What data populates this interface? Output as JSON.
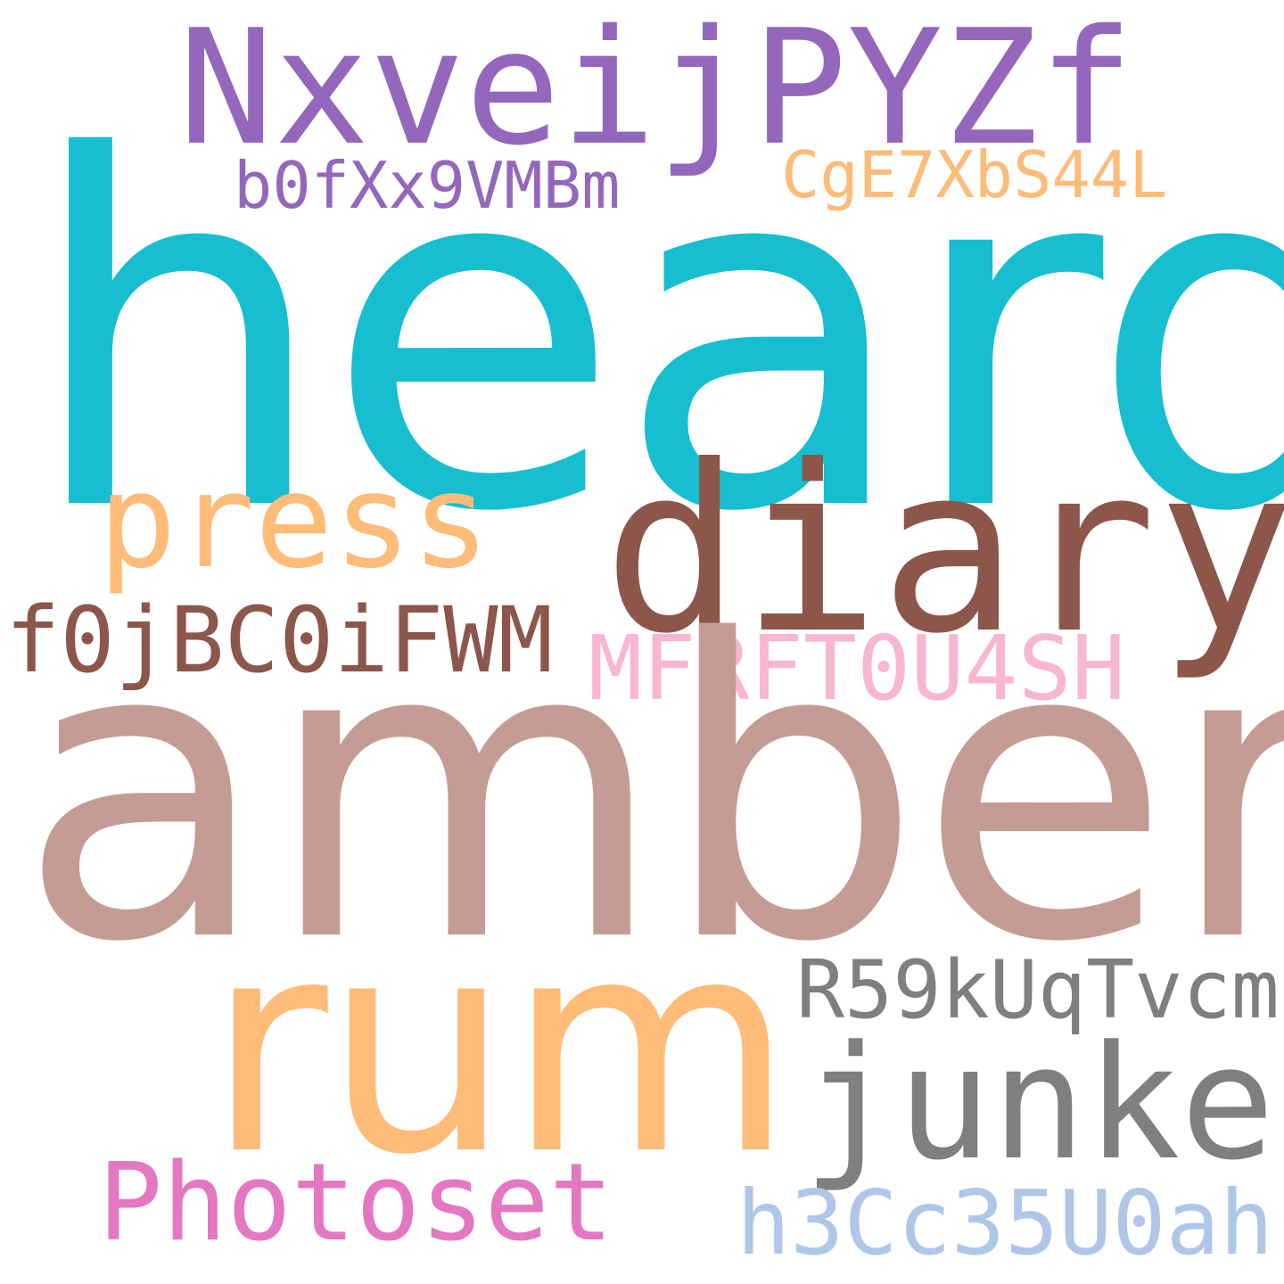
{
  "words": [
    {
      "text": "heard",
      "color": "#17becf"
    },
    {
      "text": "NxveijPYZf",
      "color": "#9467bd"
    },
    {
      "text": "b0fXx9VMBm",
      "color": "#9467bd"
    },
    {
      "text": "CgE7XbS44L",
      "color": "#ffbb78"
    },
    {
      "text": "press",
      "color": "#ffbb78"
    },
    {
      "text": "diary",
      "color": "#8c564b"
    },
    {
      "text": "f0jBC0iFWM",
      "color": "#8c564b"
    },
    {
      "text": "MFRFT0U4SH",
      "color": "#f7b6d2"
    },
    {
      "text": "amber",
      "color": "#c49c94"
    },
    {
      "text": "rum",
      "color": "#ffbb78"
    },
    {
      "text": "R59kUqTvcm",
      "color": "#7f7f7f"
    },
    {
      "text": "junket",
      "color": "#7f7f7f"
    },
    {
      "text": "Photoset",
      "color": "#e377c2"
    },
    {
      "text": "h3Cc35U0ah",
      "color": "#aec7e8"
    }
  ]
}
